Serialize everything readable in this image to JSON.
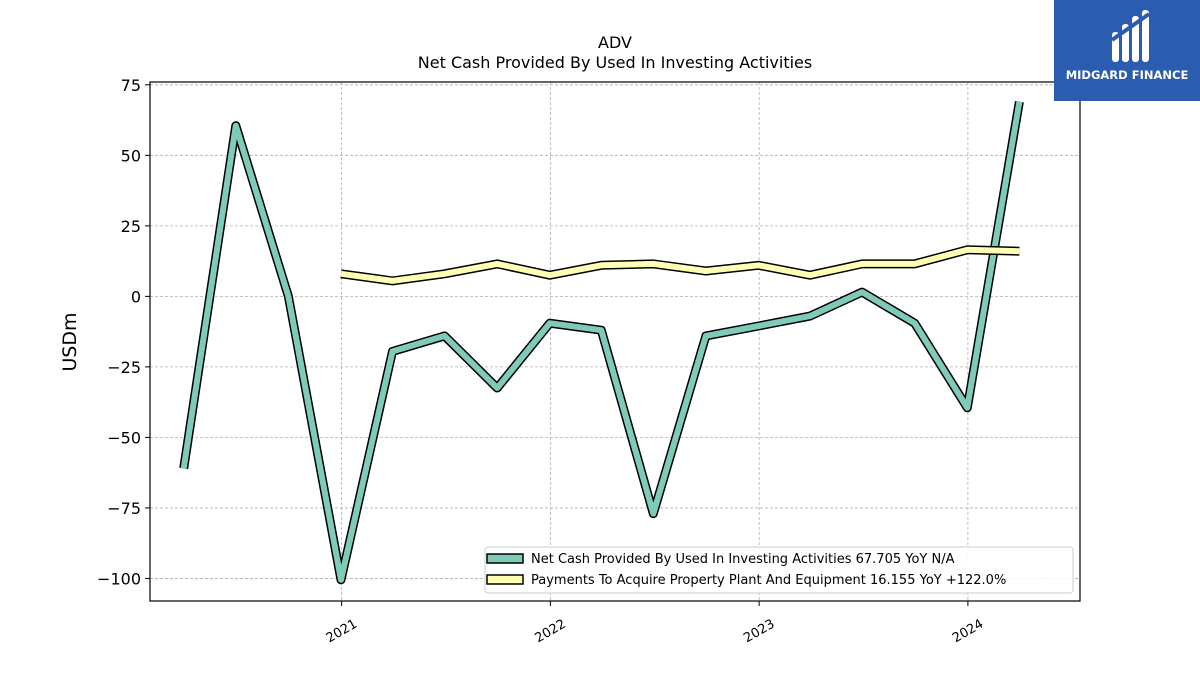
{
  "chart_data": {
    "type": "line",
    "title": "ADV",
    "subtitle": "Net Cash Provided By Used In Investing Activities",
    "ylabel": "USDm",
    "xlabel": "",
    "ylim": [
      -108,
      76
    ],
    "xlim": [
      "2020-02-01",
      "2024-07-15"
    ],
    "yticks": [
      75,
      50,
      25,
      0,
      -25,
      -50,
      -75,
      -100
    ],
    "ytick_labels": [
      "75",
      "50",
      "25",
      "0",
      "−25",
      "−50",
      "−75",
      "−100"
    ],
    "xticks": [
      "2021-01-01",
      "2022-01-01",
      "2023-01-01",
      "2024-01-01"
    ],
    "xtick_labels": [
      "2021",
      "2022",
      "2023",
      "2024"
    ],
    "grid": true,
    "legend_position": "lower-right",
    "series": [
      {
        "name": "Net Cash Provided By Used In Investing Activities",
        "legend_label": "Net Cash Provided By Used In Investing Activities  67.705 YoY N/A",
        "color": "#7ecbba",
        "x": [
          "2020-03-31",
          "2020-06-30",
          "2020-09-30",
          "2020-12-31",
          "2021-03-31",
          "2021-06-30",
          "2021-09-30",
          "2021-12-31",
          "2022-03-31",
          "2022-06-30",
          "2022-09-30",
          "2022-12-31",
          "2023-03-31",
          "2023-06-30",
          "2023-09-30",
          "2023-12-31",
          "2024-03-31"
        ],
        "values": [
          -61,
          60.5,
          0,
          -100.5,
          -19.5,
          -14,
          -32.5,
          -9.5,
          -12,
          -77,
          -14,
          -10.5,
          -7,
          1.5,
          -9.5,
          -39.5,
          69
        ]
      },
      {
        "name": "Payments To Acquire Property Plant And Equipment",
        "legend_label": "Payments To Acquire Property Plant And Equipment  16.155 YoY +122.0%",
        "color": "#ffffb3",
        "x": [
          "2020-12-31",
          "2021-03-31",
          "2021-06-30",
          "2021-09-30",
          "2021-12-31",
          "2022-03-31",
          "2022-06-30",
          "2022-09-30",
          "2022-12-31",
          "2023-03-31",
          "2023-06-30",
          "2023-09-30",
          "2023-12-31",
          "2024-03-31"
        ],
        "values": [
          8,
          5.5,
          8,
          11.5,
          7.5,
          11,
          11.5,
          9,
          11,
          7.5,
          11.5,
          11.5,
          16.5,
          16
        ]
      }
    ]
  },
  "branding": {
    "logo_text": "MIDGARD FINANCE",
    "logo_color": "#2b5cb0"
  }
}
